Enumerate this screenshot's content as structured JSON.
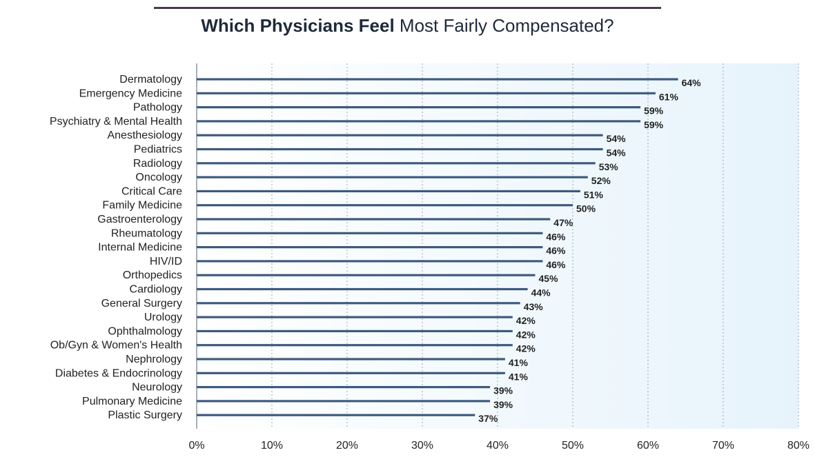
{
  "title": {
    "bold": "Which Physicians Feel",
    "regular": "Most Fairly Compensated?"
  },
  "colors": {
    "bar": "#3d5a7e",
    "plot_bg_start": "#ffffff",
    "plot_bg_end": "#e6f3fb",
    "grid": "#9aa6b4",
    "rule": "#4a3a48"
  },
  "chart_data": {
    "type": "bar",
    "orientation": "horizontal",
    "title": "Which Physicians Feel Most Fairly Compensated?",
    "categories": [
      "Dermatology",
      "Emergency Medicine",
      "Pathology",
      "Psychiatry & Mental Health",
      "Anesthesiology",
      "Pediatrics",
      "Radiology",
      "Oncology",
      "Critical Care",
      "Family Medicine",
      "Gastroenterology",
      "Rheumatology",
      "Internal Medicine",
      "HIV/ID",
      "Orthopedics",
      "Cardiology",
      "General Surgery",
      "Urology",
      "Ophthalmology",
      "Ob/Gyn & Women's Health",
      "Nephrology",
      "Diabetes & Endocrinology",
      "Neurology",
      "Pulmonary Medicine",
      "Plastic Surgery"
    ],
    "values": [
      64,
      61,
      59,
      59,
      54,
      54,
      53,
      52,
      51,
      50,
      47,
      46,
      46,
      46,
      45,
      44,
      43,
      42,
      42,
      42,
      41,
      41,
      39,
      39,
      37
    ],
    "value_labels": [
      "64%",
      "61%",
      "59%",
      "59%",
      "54%",
      "54%",
      "53%",
      "52%",
      "51%",
      "50%",
      "47%",
      "46%",
      "46%",
      "46%",
      "45%",
      "44%",
      "43%",
      "42%",
      "42%",
      "42%",
      "41%",
      "41%",
      "39%",
      "39%",
      "37%"
    ],
    "xlim": [
      0,
      80
    ],
    "xticks": [
      "0%",
      "10%",
      "20%",
      "30%",
      "40%",
      "50%",
      "60%",
      "70%",
      "80%"
    ],
    "xlabel": "",
    "ylabel": "",
    "grid": "vertical-dotted",
    "legend": "none"
  }
}
